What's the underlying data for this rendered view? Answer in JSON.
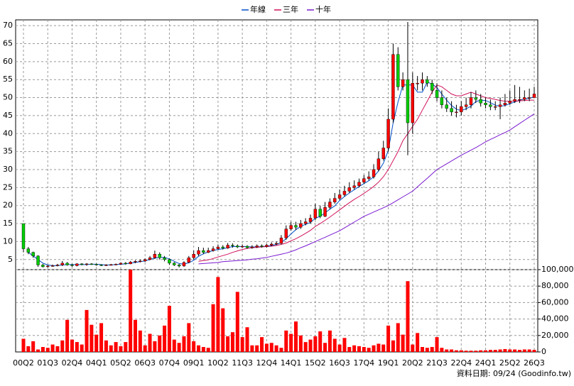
{
  "chart_data": {
    "type": "candlestick",
    "footer": "資料日期: 09/24 (Goodinfo.tw)",
    "categories": [
      "00Q2",
      null,
      null,
      null,
      null,
      "01Q3",
      null,
      null,
      null,
      null,
      "02Q4",
      null,
      null,
      null,
      null,
      "04Q1",
      null,
      null,
      null,
      null,
      "05Q2",
      null,
      null,
      null,
      null,
      "06Q3",
      null,
      null,
      null,
      null,
      "07Q4",
      null,
      null,
      null,
      null,
      "09Q1",
      null,
      null,
      null,
      null,
      "10Q2",
      null,
      null,
      null,
      null,
      "11Q3",
      null,
      null,
      null,
      null,
      "12Q4",
      null,
      null,
      null,
      null,
      "14Q1",
      null,
      null,
      null,
      null,
      "15Q2",
      null,
      null,
      null,
      null,
      "16Q3",
      null,
      null,
      null,
      null,
      "17Q4",
      null,
      null,
      null,
      null,
      "19Q1",
      null,
      null,
      null,
      null,
      "20Q2",
      null,
      null,
      null,
      null,
      "21Q3",
      null,
      null,
      null,
      null,
      "22Q4",
      null,
      null,
      null,
      null,
      "24Q1",
      null,
      null,
      null,
      null,
      "25Q2",
      null,
      null,
      null,
      null,
      "26Q3"
    ],
    "open": [
      15,
      8,
      7,
      6,
      3.5,
      3,
      3.2,
      3.3,
      3.5,
      4,
      3.5,
      3.3,
      3.8,
      3.6,
      3.8,
      3.7,
      3.5,
      3.4,
      3.5,
      3.6,
      3.7,
      4,
      3.8,
      4.3,
      4.5,
      4.6,
      5,
      5.5,
      6.5,
      5.5,
      5,
      4,
      3.5,
      3.2,
      4.2,
      5.5,
      6.5,
      7.5,
      7,
      7.5,
      8,
      8.5,
      8.2,
      9,
      8.8,
      8.5,
      8.7,
      8.3,
      8.5,
      8.8,
      8.6,
      9,
      9.3,
      9.5,
      11,
      13.5,
      14.5,
      14,
      15,
      15.5,
      16.5,
      19,
      17,
      19.5,
      21,
      22,
      23,
      24,
      25,
      25.5,
      26.5,
      27.5,
      28,
      30,
      33,
      36,
      44,
      62,
      53,
      55,
      43,
      54,
      54,
      55,
      54,
      52,
      50,
      48,
      47,
      46,
      46,
      47.5,
      48,
      50,
      49.5,
      48.5,
      48,
      47.5,
      47.5,
      48,
      48.5,
      49,
      49.5,
      49.5,
      50,
      50
    ],
    "high": [
      15,
      8.5,
      7.2,
      6.2,
      3.8,
      3.5,
      3.6,
      3.8,
      4.6,
      4.3,
      3.8,
      4,
      4,
      4,
      4,
      3.9,
      3.7,
      3.7,
      3.8,
      3.9,
      4.2,
      4.3,
      4.6,
      4.8,
      5,
      5.3,
      6,
      7.5,
      7,
      6,
      5.3,
      4.3,
      3.8,
      4.5,
      6,
      7.5,
      8.5,
      8.3,
      8.3,
      8.7,
      9.2,
      9,
      9.6,
      9.5,
      9.2,
      9.2,
      9,
      9,
      9.2,
      9.2,
      9.4,
      9.8,
      10,
      11.8,
      14.5,
      15.5,
      15.5,
      16,
      16.5,
      17.5,
      20.5,
      20,
      21,
      22,
      23.5,
      24.5,
      25.5,
      26.5,
      27,
      27.5,
      28.5,
      29.5,
      31.5,
      35,
      38,
      47,
      65,
      64,
      57,
      71,
      57,
      56,
      57,
      56,
      55,
      54,
      52,
      50,
      49,
      48,
      49,
      50,
      51.5,
      52,
      51,
      50,
      49.5,
      49,
      50,
      51,
      52,
      53.5,
      53,
      52,
      52.5,
      53
    ],
    "low": [
      7,
      6.5,
      5.5,
      3,
      2.8,
      2.8,
      3,
      3.1,
      3.2,
      3.3,
      3,
      3.1,
      3.4,
      3.3,
      3.5,
      3.3,
      3.2,
      3.2,
      3.3,
      3.4,
      3.5,
      3.6,
      3.7,
      4,
      4.2,
      4.3,
      4.8,
      5.2,
      5,
      4.5,
      3.5,
      3.2,
      2.8,
      3,
      4,
      5,
      6,
      6.5,
      6.8,
      7.2,
      7.8,
      7.8,
      8,
      8.3,
      8.2,
      8.2,
      8,
      8,
      8.2,
      8.3,
      8.3,
      8.7,
      9,
      9.2,
      10.5,
      13,
      13.2,
      13.5,
      14.5,
      15,
      16,
      16.5,
      16.8,
      19,
      20.5,
      21.5,
      22.5,
      23.5,
      24.5,
      25,
      26,
      27,
      27.5,
      29.5,
      32.5,
      35,
      43,
      52,
      52,
      34,
      40,
      52,
      52,
      53,
      51,
      49,
      47,
      46,
      45,
      44.5,
      45,
      46.5,
      47,
      48.5,
      47.5,
      47,
      46.5,
      46.5,
      44,
      47.5,
      48,
      48.5,
      48.5,
      49,
      49,
      50
    ],
    "close": [
      8,
      7,
      6,
      3.5,
      3,
      3.2,
      3.3,
      3.5,
      4,
      3.5,
      3.3,
      3.8,
      3.6,
      3.8,
      3.7,
      3.5,
      3.4,
      3.5,
      3.6,
      3.7,
      4,
      3.8,
      4.3,
      4.5,
      4.6,
      5,
      5.5,
      6.5,
      5.5,
      5,
      4,
      3.5,
      3.2,
      4.2,
      5.5,
      6.5,
      7.5,
      7,
      7.5,
      8,
      8.5,
      8.2,
      9,
      8.8,
      8.5,
      8.7,
      8.3,
      8.5,
      8.8,
      8.6,
      9,
      9.3,
      9.5,
      11,
      13.5,
      14.5,
      14,
      15,
      15.5,
      16.5,
      19,
      17,
      19.5,
      21,
      22,
      23,
      24,
      25,
      25.5,
      26.5,
      27.5,
      28,
      30,
      33,
      36,
      44,
      62,
      53,
      55,
      43,
      54,
      54,
      55,
      54,
      52,
      50,
      48,
      47,
      46,
      46,
      47.5,
      48,
      50,
      49.5,
      48.5,
      48,
      47.5,
      47.5,
      48,
      48.5,
      49,
      49.5,
      49.5,
      50,
      50,
      51
    ],
    "up_color": "#ff0000",
    "down_color": "#00cc00",
    "volume": [
      16000,
      7000,
      13000,
      3000,
      6000,
      5000,
      9000,
      7000,
      14000,
      39000,
      15000,
      12000,
      9000,
      51000,
      33000,
      21000,
      35000,
      14000,
      8000,
      12000,
      7000,
      12000,
      101000,
      39000,
      26000,
      8000,
      22000,
      13000,
      20000,
      32000,
      56000,
      15000,
      11000,
      19000,
      35000,
      13000,
      8000,
      6000,
      5000,
      58000,
      91000,
      53000,
      19000,
      24000,
      73000,
      18000,
      30000,
      8000,
      8000,
      18000,
      10000,
      11000,
      8000,
      5000,
      26000,
      22000,
      37000,
      20000,
      12000,
      15000,
      19000,
      25000,
      11000,
      26000,
      16000,
      9000,
      17000,
      6000,
      8000,
      7000,
      6000,
      5000,
      8000,
      10000,
      9000,
      32000,
      14000,
      35000,
      21000,
      86000,
      9000,
      23000,
      6000,
      5000,
      6000,
      18000,
      5000,
      3000,
      3000,
      2000,
      2000,
      1500,
      1500,
      1500,
      2000,
      2000,
      2500,
      2500,
      3000,
      3500,
      3000,
      3000,
      2500,
      3000,
      3000,
      2500
    ],
    "volume_color": "#ff0000",
    "series": [
      {
        "name": "年線",
        "color": "#0050c8",
        "values": [
          null,
          7,
          6,
          5,
          4,
          3.5,
          3.3,
          3.3,
          3.5,
          3.6,
          3.6,
          3.6,
          3.6,
          3.6,
          3.7,
          3.7,
          3.6,
          3.5,
          3.5,
          3.6,
          3.7,
          3.8,
          4,
          4.2,
          4.4,
          4.6,
          5,
          5.4,
          5.6,
          5.6,
          5.2,
          4.5,
          3.9,
          3.7,
          4.1,
          4.8,
          5.9,
          6.6,
          7.1,
          7.5,
          7.8,
          8,
          8.3,
          8.6,
          8.6,
          8.6,
          8.6,
          8.5,
          8.5,
          8.6,
          8.7,
          8.9,
          9.2,
          9.7,
          10.8,
          12.1,
          13.3,
          14.2,
          14.8,
          15.3,
          16.5,
          17,
          18,
          19,
          19.9,
          21.4,
          22.5,
          23.5,
          24.4,
          25.3,
          26.1,
          26.9,
          28,
          29.6,
          31.8,
          35.3,
          43,
          48.8,
          53.5,
          53.5,
          53.5,
          51.5,
          51.5,
          54.3,
          53.8,
          52.8,
          51,
          49.3,
          47.8,
          46.8,
          46.4,
          46.9,
          47.6,
          48.9,
          49.3,
          49.2,
          48.6,
          47.9,
          47.6,
          47.8,
          48.3,
          48.8,
          49.3,
          49.6,
          49.8,
          50.2
        ]
      },
      {
        "name": "三年",
        "color": "#d0105a",
        "values": [
          null,
          null,
          null,
          null,
          null,
          null,
          null,
          null,
          null,
          null,
          null,
          null,
          null,
          null,
          null,
          null,
          null,
          null,
          null,
          null,
          null,
          null,
          null,
          null,
          null,
          null,
          null,
          null,
          null,
          null,
          null,
          null,
          null,
          null,
          null,
          null,
          4.5,
          4.7,
          4.9,
          5.3,
          5.7,
          6.1,
          6.5,
          7,
          7.4,
          7.8,
          8.1,
          8.3,
          8.4,
          8.5,
          8.6,
          8.7,
          8.9,
          9.2,
          9.6,
          10.2,
          10.8,
          11.5,
          12.3,
          13.1,
          14.2,
          15,
          15.9,
          16.8,
          17.8,
          18.8,
          19.8,
          20.8,
          21.7,
          22.5,
          23.4,
          24.3,
          25.3,
          26.5,
          28,
          30,
          32.5,
          35,
          38,
          40,
          42,
          44,
          46.5,
          49,
          51.5,
          53.5,
          53,
          52,
          51,
          50.5,
          50.5,
          51,
          51.5,
          51,
          50.5,
          50,
          49.8,
          49.5,
          49.2,
          49,
          49,
          49,
          49.1,
          49.2,
          49.3,
          49.3
        ]
      },
      {
        "name": "十年",
        "color": "#7a1ad0",
        "values": [
          null,
          null,
          null,
          null,
          null,
          null,
          null,
          null,
          null,
          null,
          null,
          null,
          null,
          null,
          null,
          null,
          null,
          null,
          null,
          null,
          null,
          null,
          null,
          null,
          null,
          null,
          null,
          null,
          null,
          null,
          null,
          null,
          null,
          null,
          null,
          null,
          3.8,
          3.9,
          4,
          4.1,
          4.2,
          4.4,
          4.5,
          4.6,
          4.7,
          4.8,
          4.9,
          5.1,
          5.2,
          5.4,
          5.6,
          5.9,
          6.2,
          6.5,
          6.8,
          7.2,
          7.7,
          8.3,
          8.8,
          9.4,
          10,
          10.6,
          11.2,
          11.8,
          12.4,
          13,
          13.8,
          14.6,
          15.4,
          16.2,
          17,
          17.6,
          18.2,
          18.8,
          19.4,
          20,
          20.8,
          21.6,
          22.4,
          23.2,
          24,
          25.2,
          26.4,
          27.6,
          28.8,
          30,
          30.8,
          31.6,
          32.4,
          33.2,
          34,
          34.7,
          35.4,
          36.1,
          36.9,
          37.7,
          38.4,
          39,
          39.7,
          40.3,
          41,
          41.9,
          42.8,
          43.7,
          44.6,
          45.5
        ]
      }
    ],
    "ylim": [
      2.2,
      71.6
    ],
    "yticks": [
      5,
      10,
      15,
      20,
      25,
      30,
      35,
      40,
      45,
      50,
      55,
      60,
      65,
      70
    ],
    "y2lim": [
      0,
      100000
    ],
    "y2ticks": [
      0,
      {
        "value": 20000,
        "label": "20,000"
      },
      {
        "value": 40000,
        "label": "40,000"
      },
      {
        "value": 60000,
        "label": "60,000"
      },
      {
        "value": 80000,
        "label": "80,000"
      },
      {
        "value": 100000,
        "label": "100,000"
      }
    ],
    "grid": true,
    "legend": "top"
  }
}
